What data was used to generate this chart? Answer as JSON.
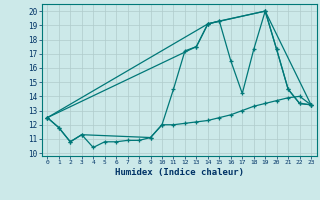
{
  "xlabel": "Humidex (Indice chaleur)",
  "xlim": [
    -0.5,
    23.5
  ],
  "ylim": [
    9.8,
    20.5
  ],
  "yticks": [
    10,
    11,
    12,
    13,
    14,
    15,
    16,
    17,
    18,
    19,
    20
  ],
  "xtick_labels": [
    "0",
    "1",
    "2",
    "3",
    "4",
    "5",
    "6",
    "7",
    "8",
    "9",
    "10",
    "11",
    "12",
    "13",
    "14",
    "15",
    "16",
    "17",
    "18",
    "19",
    "20",
    "21",
    "22",
    "23"
  ],
  "background_color": "#cce9e9",
  "grid_color": "#b0cccc",
  "line_color": "#007878",
  "lines": [
    {
      "x": [
        0,
        1,
        2,
        3,
        4,
        5,
        6,
        7,
        8,
        9,
        10,
        11,
        12,
        13,
        14,
        15,
        16,
        17,
        18,
        19,
        20,
        21,
        22,
        23
      ],
      "y": [
        12.5,
        11.8,
        10.8,
        11.3,
        10.4,
        10.8,
        10.8,
        10.9,
        10.9,
        11.1,
        12.0,
        14.5,
        17.2,
        17.5,
        19.1,
        19.3,
        16.5,
        14.2,
        17.3,
        20.0,
        17.3,
        14.5,
        13.5,
        13.4
      ]
    },
    {
      "x": [
        0,
        1,
        2,
        3,
        9,
        10,
        11,
        12,
        13,
        14,
        15,
        16,
        17,
        18,
        19,
        20,
        21,
        22,
        23
      ],
      "y": [
        12.5,
        11.8,
        10.8,
        11.3,
        11.1,
        12.0,
        12.0,
        12.1,
        12.2,
        12.3,
        12.5,
        12.7,
        13.0,
        13.3,
        13.5,
        13.7,
        13.9,
        14.0,
        13.4
      ]
    },
    {
      "x": [
        0,
        13,
        14,
        15,
        19,
        20,
        21,
        22,
        23
      ],
      "y": [
        12.5,
        17.5,
        19.1,
        19.3,
        20.0,
        17.3,
        14.5,
        13.5,
        13.4
      ]
    },
    {
      "x": [
        0,
        14,
        19,
        23
      ],
      "y": [
        12.5,
        19.1,
        20.0,
        13.4
      ]
    }
  ]
}
